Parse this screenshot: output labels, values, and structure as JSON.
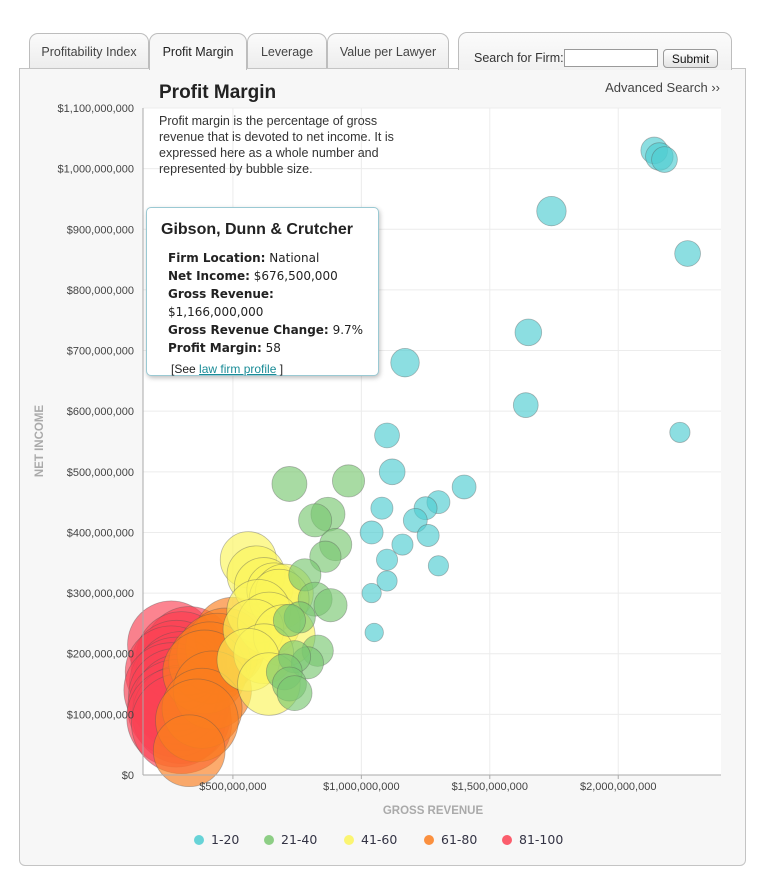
{
  "tabs": [
    {
      "label": "Profitability Index"
    },
    {
      "label": "Profit Margin"
    },
    {
      "label": "Leverage"
    },
    {
      "label": "Value per Lawyer"
    }
  ],
  "active_tab": 1,
  "search": {
    "label": "Search for Firm:",
    "value": "",
    "button": "Submit"
  },
  "advanced_search": "Advanced Search ››",
  "title": "Profit Margin",
  "description": "Profit margin is the percentage of gross revenue that is devoted to net income. It is expressed here as a whole number and represented by bubble size.",
  "tooltip": {
    "firm": "Gibson, Dunn & Crutcher",
    "rows": [
      {
        "label": "Firm Location:",
        "value": "National"
      },
      {
        "label": "Net Income:",
        "value": "$676,500,000"
      },
      {
        "label": "Gross Revenue:",
        "value": "$1,166,000,000"
      },
      {
        "label": "Gross Revenue Change:",
        "value": "9.7%"
      },
      {
        "label": "Profit Margin:",
        "value": "58"
      }
    ],
    "link_prefix": "[See ",
    "link_text": "law firm profile",
    "link_suffix": " ]"
  },
  "colors": {
    "1-20": "#4ecdd1",
    "21-40": "#7ac771",
    "41-60": "#fbf55a",
    "61-80": "#fb7e1e",
    "81-100": "#fb4254"
  },
  "chart_data": {
    "type": "scatter",
    "xlabel": "GROSS REVENUE",
    "ylabel": "NET INCOME",
    "xlim": [
      150000000,
      2400000000
    ],
    "ylim": [
      0,
      1100000000
    ],
    "x_ticks": [
      {
        "value": 500000000,
        "label": "$500,000,000"
      },
      {
        "value": 1000000000,
        "label": "$1,000,000,000"
      },
      {
        "value": 1500000000,
        "label": "$1,500,000,000"
      },
      {
        "value": 2000000000,
        "label": "$2,000,000,000"
      }
    ],
    "y_ticks": [
      {
        "value": 0,
        "label": "$0"
      },
      {
        "value": 100000000,
        "label": "$100,000,000"
      },
      {
        "value": 200000000,
        "label": "$200,000,000"
      },
      {
        "value": 300000000,
        "label": "$300,000,000"
      },
      {
        "value": 400000000,
        "label": "$400,000,000"
      },
      {
        "value": 500000000,
        "label": "$500,000,000"
      },
      {
        "value": 600000000,
        "label": "$600,000,000"
      },
      {
        "value": 700000000,
        "label": "$700,000,000"
      },
      {
        "value": 800000000,
        "label": "$800,000,000"
      },
      {
        "value": 900000000,
        "label": "$900,000,000"
      },
      {
        "value": 1000000000,
        "label": "$1,000,000,000"
      },
      {
        "value": 1100000000,
        "label": "$1,100,000,000"
      }
    ],
    "grid": true,
    "legend_position": "bottom",
    "series": [
      {
        "name": "1-20",
        "key": "1-20",
        "points": [
          [
            2140000000,
            1030000000,
            16
          ],
          [
            2160000000,
            1020000000,
            17
          ],
          [
            2180000000,
            1015000000,
            15
          ],
          [
            1740000000,
            930000000,
            19
          ],
          [
            2270000000,
            860000000,
            15
          ],
          [
            1650000000,
            730000000,
            16
          ],
          [
            1170000000,
            680000000,
            18
          ],
          [
            1640000000,
            610000000,
            14
          ],
          [
            2240000000,
            565000000,
            9
          ],
          [
            1100000000,
            560000000,
            14
          ],
          [
            1120000000,
            500000000,
            15
          ],
          [
            1400000000,
            475000000,
            13
          ],
          [
            1300000000,
            450000000,
            12
          ],
          [
            1250000000,
            440000000,
            12
          ],
          [
            1210000000,
            420000000,
            13
          ],
          [
            1080000000,
            440000000,
            11
          ],
          [
            1040000000,
            400000000,
            12
          ],
          [
            1260000000,
            395000000,
            11
          ],
          [
            1160000000,
            380000000,
            10
          ],
          [
            1100000000,
            355000000,
            10
          ],
          [
            1300000000,
            345000000,
            9
          ],
          [
            1100000000,
            320000000,
            9
          ],
          [
            1040000000,
            300000000,
            8
          ],
          [
            1050000000,
            235000000,
            7
          ]
        ]
      },
      {
        "name": "21-40",
        "key": "21-40",
        "points": [
          [
            720000000,
            480000000,
            25
          ],
          [
            950000000,
            485000000,
            22
          ],
          [
            870000000,
            430000000,
            24
          ],
          [
            820000000,
            420000000,
            23
          ],
          [
            900000000,
            380000000,
            22
          ],
          [
            860000000,
            360000000,
            21
          ],
          [
            780000000,
            330000000,
            22
          ],
          [
            820000000,
            290000000,
            24
          ],
          [
            880000000,
            280000000,
            23
          ],
          [
            760000000,
            260000000,
            21
          ],
          [
            720000000,
            255000000,
            22
          ],
          [
            830000000,
            205000000,
            21
          ],
          [
            790000000,
            185000000,
            22
          ],
          [
            740000000,
            195000000,
            22
          ],
          [
            700000000,
            170000000,
            26
          ],
          [
            720000000,
            150000000,
            24
          ],
          [
            740000000,
            135000000,
            25
          ]
        ]
      },
      {
        "name": "41-60",
        "key": "41-60",
        "points": [
          [
            560000000,
            355000000,
            48
          ],
          [
            590000000,
            330000000,
            50
          ],
          [
            620000000,
            310000000,
            51
          ],
          [
            660000000,
            305000000,
            46
          ],
          [
            700000000,
            300000000,
            50
          ],
          [
            680000000,
            290000000,
            52
          ],
          [
            600000000,
            270000000,
            56
          ],
          [
            640000000,
            250000000,
            55
          ],
          [
            580000000,
            240000000,
            53
          ],
          [
            700000000,
            230000000,
            54
          ],
          [
            620000000,
            200000000,
            52
          ],
          [
            560000000,
            190000000,
            55
          ],
          [
            640000000,
            150000000,
            55
          ]
        ]
      },
      {
        "name": "61-80",
        "key": "61-80",
        "points": [
          [
            500000000,
            230000000,
            70
          ],
          [
            470000000,
            210000000,
            73
          ],
          [
            440000000,
            200000000,
            75
          ],
          [
            410000000,
            185000000,
            76
          ],
          [
            390000000,
            170000000,
            78
          ],
          [
            420000000,
            140000000,
            72
          ],
          [
            380000000,
            110000000,
            74
          ],
          [
            360000000,
            90000000,
            77
          ],
          [
            330000000,
            40000000,
            65
          ]
        ]
      },
      {
        "name": "81-100",
        "key": "81-100",
        "points": [
          [
            260000000,
            215000000,
            82
          ],
          [
            330000000,
            205000000,
            83
          ],
          [
            300000000,
            195000000,
            85
          ],
          [
            280000000,
            180000000,
            86
          ],
          [
            260000000,
            170000000,
            87
          ],
          [
            300000000,
            160000000,
            88
          ],
          [
            280000000,
            150000000,
            89
          ],
          [
            260000000,
            140000000,
            90
          ],
          [
            280000000,
            130000000,
            91
          ],
          [
            300000000,
            120000000,
            92
          ],
          [
            280000000,
            110000000,
            93
          ],
          [
            300000000,
            100000000,
            94
          ],
          [
            280000000,
            95000000,
            95
          ],
          [
            300000000,
            85000000,
            96
          ]
        ]
      }
    ]
  }
}
